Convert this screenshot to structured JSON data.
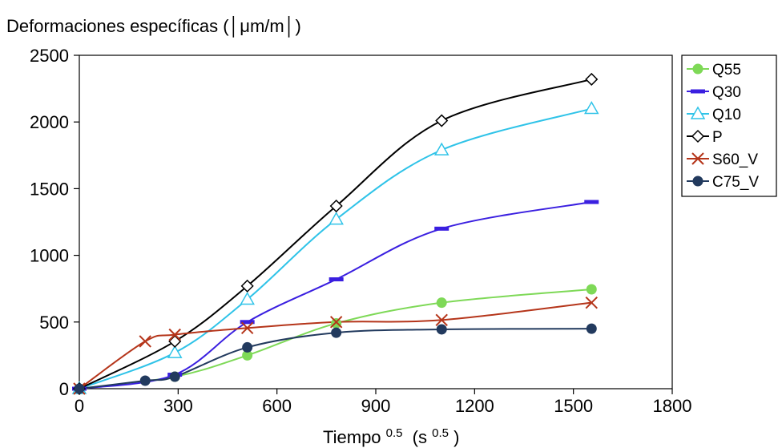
{
  "chart_data": {
    "type": "line",
    "smooth": true,
    "ylabel": "Deformaciones específicas (│μm/m│)",
    "xlabel_main": "Tiempo",
    "xlabel_sup1": "0.5",
    "xlabel_paren_open": "(s",
    "xlabel_sup2": "0.5",
    "xlabel_paren_close": ")",
    "xlim": [
      0,
      1800
    ],
    "ylim": [
      0,
      2500
    ],
    "x_ticks": [
      0,
      300,
      600,
      900,
      1200,
      1500,
      1800
    ],
    "y_ticks": [
      0,
      500,
      1000,
      1500,
      2000,
      2500
    ],
    "x_tick_labels": [
      "0",
      "300",
      "600",
      "900",
      "1200",
      "1500",
      "1800"
    ],
    "y_tick_labels": [
      "0",
      "500",
      "1000",
      "1500",
      "2000",
      "2500"
    ],
    "grid": false,
    "legend_position": "right",
    "series": [
      {
        "name": "Q55",
        "color": "#7ED957",
        "marker": "circle-filled",
        "x": [
          0,
          290,
          510,
          780,
          1100,
          1555
        ],
        "y": [
          0,
          90,
          250,
          490,
          645,
          745
        ]
      },
      {
        "name": "Q30",
        "color": "#3A1FE0",
        "marker": "dash",
        "x": [
          0,
          290,
          510,
          780,
          1100,
          1555
        ],
        "y": [
          0,
          105,
          500,
          820,
          1200,
          1400
        ]
      },
      {
        "name": "Q10",
        "color": "#2FC3E8",
        "marker": "triangle-open",
        "x": [
          0,
          290,
          510,
          780,
          1100,
          1555
        ],
        "y": [
          0,
          270,
          670,
          1270,
          1790,
          2100
        ]
      },
      {
        "name": "P",
        "color": "#000000",
        "marker": "diamond-open",
        "x": [
          0,
          290,
          510,
          780,
          1100,
          1555
        ],
        "y": [
          0,
          355,
          770,
          1370,
          2010,
          2320
        ]
      },
      {
        "name": "S60_V",
        "color": "#B5351A",
        "marker": "x",
        "x": [
          0,
          200,
          290,
          510,
          780,
          1100,
          1555
        ],
        "y": [
          0,
          355,
          405,
          455,
          500,
          515,
          645
        ]
      },
      {
        "name": "C75_V",
        "color": "#223A5E",
        "marker": "circle-filled",
        "x": [
          0,
          200,
          290,
          510,
          780,
          1100,
          1555
        ],
        "y": [
          0,
          60,
          90,
          310,
          420,
          445,
          450
        ]
      }
    ]
  }
}
